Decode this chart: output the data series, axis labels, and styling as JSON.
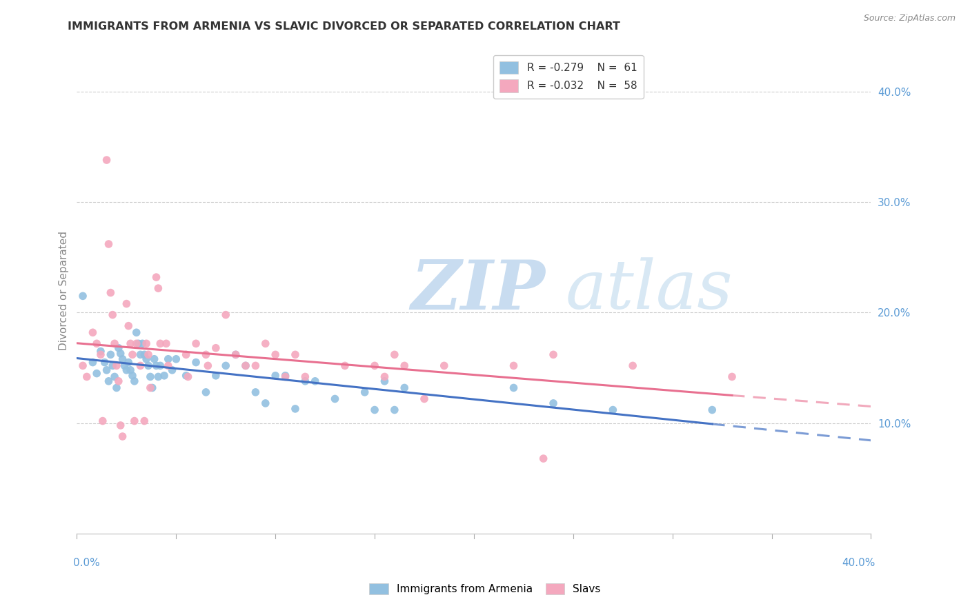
{
  "title": "IMMIGRANTS FROM ARMENIA VS SLAVIC DIVORCED OR SEPARATED CORRELATION CHART",
  "source": "Source: ZipAtlas.com",
  "ylabel": "Divorced or Separated",
  "right_yticks": [
    "40.0%",
    "30.0%",
    "20.0%",
    "10.0%"
  ],
  "right_ytick_vals": [
    0.4,
    0.3,
    0.2,
    0.1
  ],
  "xlim": [
    0.0,
    0.4
  ],
  "ylim": [
    0.0,
    0.44
  ],
  "legend_r1": "R = -0.279",
  "legend_n1": "N =  61",
  "legend_r2": "R = -0.032",
  "legend_n2": "N =  58",
  "color_blue": "#92C0E0",
  "color_pink": "#F4A8BE",
  "color_blue_line": "#4472C4",
  "color_pink_line": "#E87090",
  "blue_scatter_x": [
    0.003,
    0.008,
    0.01,
    0.012,
    0.014,
    0.015,
    0.016,
    0.017,
    0.018,
    0.019,
    0.02,
    0.021,
    0.022,
    0.023,
    0.024,
    0.025,
    0.026,
    0.027,
    0.028,
    0.029,
    0.03,
    0.031,
    0.032,
    0.033,
    0.034,
    0.035,
    0.036,
    0.037,
    0.038,
    0.039,
    0.04,
    0.041,
    0.042,
    0.044,
    0.046,
    0.048,
    0.05,
    0.055,
    0.06,
    0.065,
    0.07,
    0.075,
    0.08,
    0.085,
    0.09,
    0.095,
    0.1,
    0.105,
    0.11,
    0.115,
    0.12,
    0.13,
    0.145,
    0.15,
    0.155,
    0.16,
    0.165,
    0.22,
    0.24,
    0.27,
    0.32
  ],
  "blue_scatter_y": [
    0.215,
    0.155,
    0.145,
    0.165,
    0.155,
    0.148,
    0.138,
    0.162,
    0.152,
    0.142,
    0.132,
    0.168,
    0.163,
    0.158,
    0.152,
    0.148,
    0.155,
    0.148,
    0.143,
    0.138,
    0.182,
    0.172,
    0.162,
    0.172,
    0.162,
    0.158,
    0.152,
    0.142,
    0.132,
    0.158,
    0.152,
    0.142,
    0.152,
    0.143,
    0.158,
    0.148,
    0.158,
    0.143,
    0.155,
    0.128,
    0.143,
    0.152,
    0.162,
    0.152,
    0.128,
    0.118,
    0.143,
    0.143,
    0.113,
    0.138,
    0.138,
    0.122,
    0.128,
    0.112,
    0.138,
    0.112,
    0.132,
    0.132,
    0.118,
    0.112,
    0.112
  ],
  "pink_scatter_x": [
    0.003,
    0.005,
    0.008,
    0.01,
    0.012,
    0.013,
    0.015,
    0.016,
    0.017,
    0.018,
    0.019,
    0.02,
    0.021,
    0.022,
    0.023,
    0.025,
    0.026,
    0.027,
    0.028,
    0.029,
    0.03,
    0.032,
    0.034,
    0.035,
    0.036,
    0.037,
    0.04,
    0.041,
    0.042,
    0.045,
    0.046,
    0.055,
    0.056,
    0.06,
    0.065,
    0.066,
    0.07,
    0.075,
    0.08,
    0.085,
    0.09,
    0.095,
    0.1,
    0.105,
    0.11,
    0.115,
    0.135,
    0.15,
    0.155,
    0.16,
    0.165,
    0.175,
    0.185,
    0.22,
    0.235,
    0.24,
    0.28,
    0.33
  ],
  "pink_scatter_y": [
    0.152,
    0.142,
    0.182,
    0.172,
    0.162,
    0.102,
    0.338,
    0.262,
    0.218,
    0.198,
    0.172,
    0.152,
    0.138,
    0.098,
    0.088,
    0.208,
    0.188,
    0.172,
    0.162,
    0.102,
    0.172,
    0.152,
    0.102,
    0.172,
    0.162,
    0.132,
    0.232,
    0.222,
    0.172,
    0.172,
    0.152,
    0.162,
    0.142,
    0.172,
    0.162,
    0.152,
    0.168,
    0.198,
    0.162,
    0.152,
    0.152,
    0.172,
    0.162,
    0.142,
    0.162,
    0.142,
    0.152,
    0.152,
    0.142,
    0.162,
    0.152,
    0.122,
    0.152,
    0.152,
    0.068,
    0.162,
    0.152,
    0.142
  ]
}
